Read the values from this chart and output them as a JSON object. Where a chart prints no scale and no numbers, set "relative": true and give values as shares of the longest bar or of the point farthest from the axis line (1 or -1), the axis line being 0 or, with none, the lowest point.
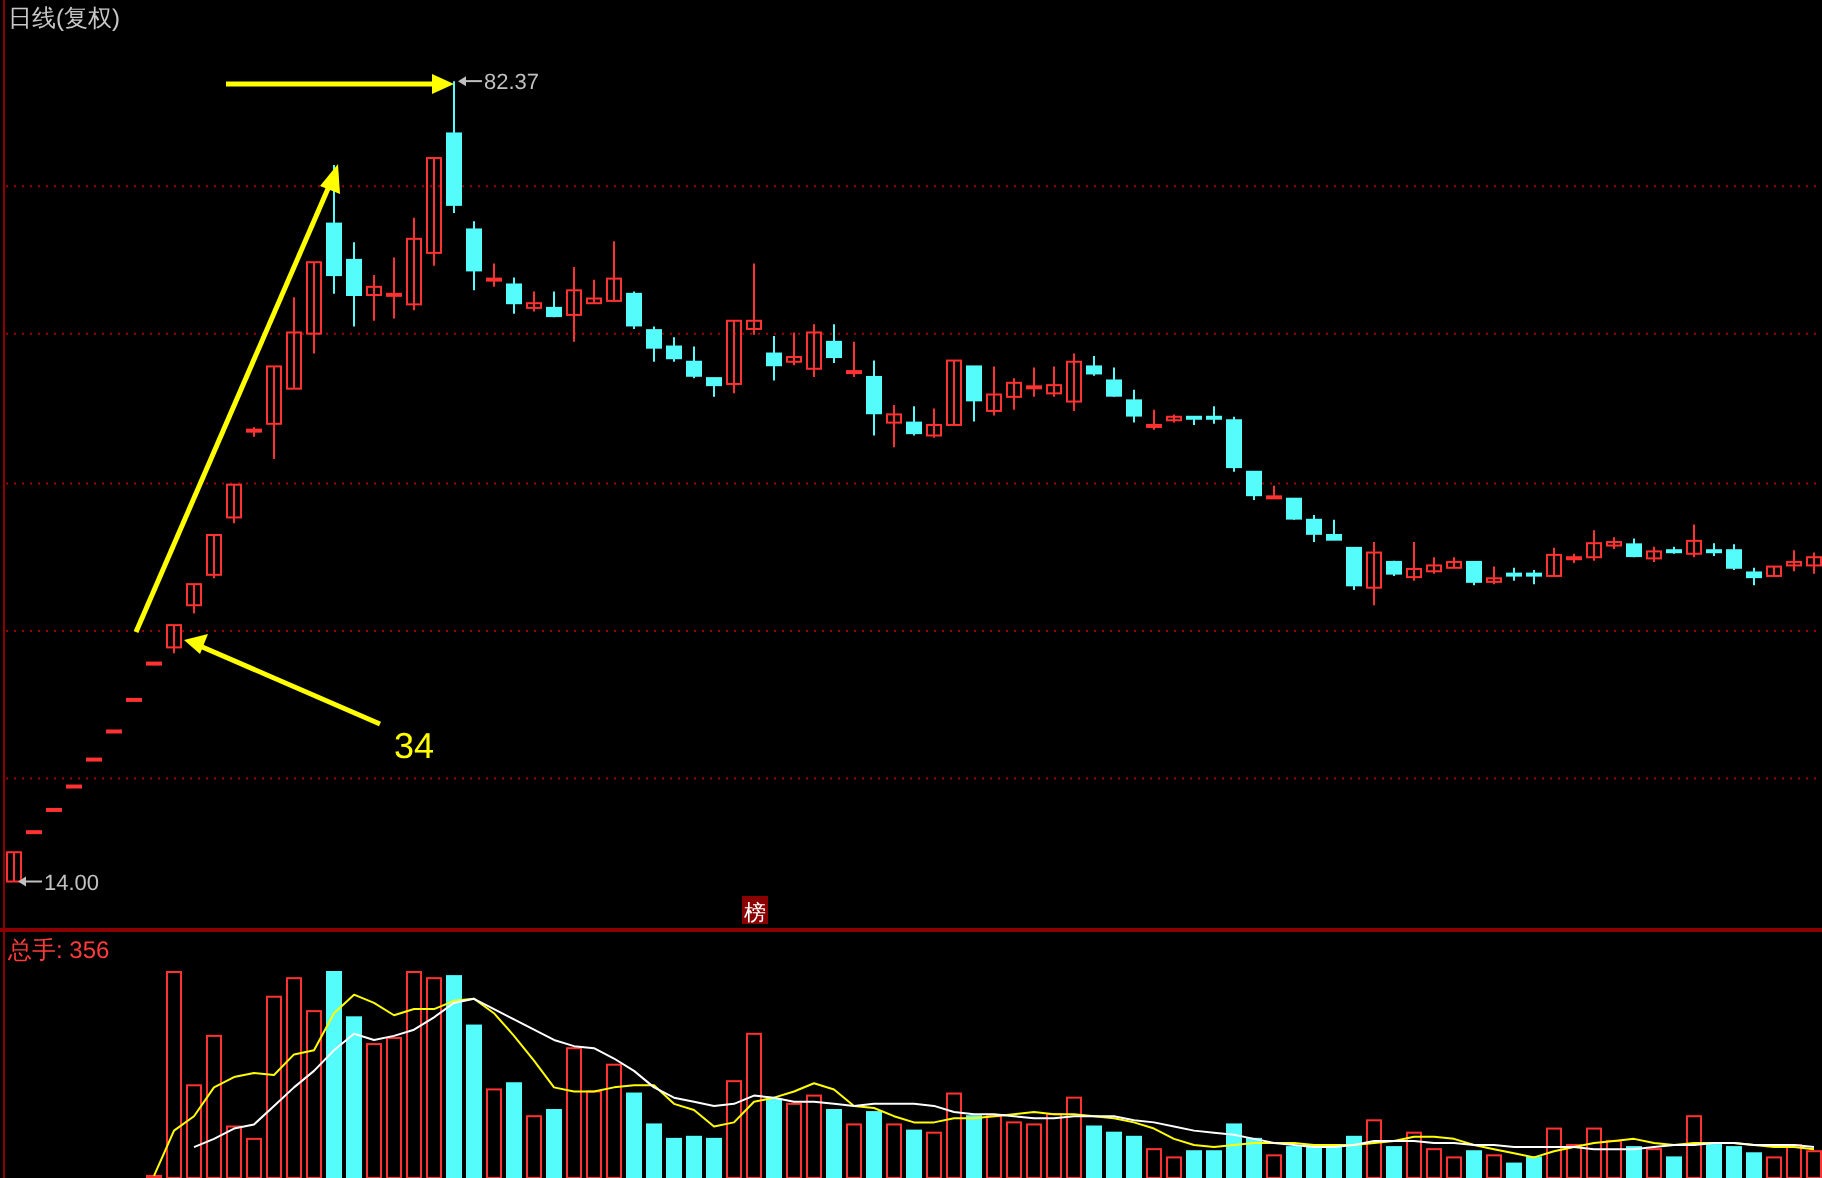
{
  "chart_data": [
    {
      "type": "candlestick",
      "title": "日线(复权)",
      "categories": [
        null,
        null,
        null,
        null,
        null,
        null,
        null,
        null,
        null,
        null,
        null,
        null,
        null,
        null,
        null,
        null,
        null,
        null,
        null,
        null,
        null,
        null,
        null,
        null,
        null,
        null,
        null,
        null,
        null,
        null,
        null,
        null,
        null,
        null,
        null,
        null,
        null,
        null,
        null,
        null,
        null,
        null,
        null,
        null,
        null,
        null,
        null,
        null,
        null,
        null,
        null,
        null,
        null,
        null,
        null,
        null,
        null,
        null,
        null,
        null,
        null,
        null,
        null,
        null,
        null,
        null,
        null,
        null,
        null,
        null,
        null,
        null,
        null,
        null,
        null,
        null,
        null,
        null,
        null,
        null,
        null,
        null,
        null,
        null,
        null,
        null,
        null,
        null,
        null,
        null,
        null
      ],
      "ohlc": [
        [
          14.0,
          16.5,
          14.0,
          16.5
        ],
        [
          18.3,
          18.3,
          18.3,
          18.3
        ],
        [
          20.2,
          20.2,
          20.2,
          20.2
        ],
        [
          22.2,
          22.2,
          22.2,
          22.2
        ],
        [
          24.5,
          24.5,
          24.5,
          24.5
        ],
        [
          26.9,
          26.9,
          26.9,
          26.9
        ],
        [
          29.6,
          29.6,
          29.6,
          29.6
        ],
        [
          32.7,
          32.7,
          32.7,
          32.7
        ],
        [
          34.0,
          35.9,
          33.5,
          35.9
        ],
        [
          37.6,
          39.4,
          36.9,
          39.4
        ],
        [
          40.2,
          43.6,
          39.9,
          43.6
        ],
        [
          45.1,
          47.9,
          44.6,
          47.9
        ],
        [
          52.5,
          52.8,
          52.0,
          52.6
        ],
        [
          53.1,
          58.0,
          50.1,
          58.0
        ],
        [
          56.1,
          63.9,
          56.1,
          60.9
        ],
        [
          60.8,
          66.9,
          59.1,
          66.9
        ],
        [
          70.2,
          75.2,
          64.2,
          65.8
        ],
        [
          67.1,
          68.6,
          61.4,
          64.1
        ],
        [
          64.1,
          65.8,
          61.9,
          64.8
        ],
        [
          64.1,
          67.3,
          62.1,
          64.2
        ],
        [
          63.3,
          70.7,
          62.8,
          68.9
        ],
        [
          67.7,
          75.8,
          66.6,
          75.8
        ],
        [
          77.9,
          82.37,
          71.1,
          71.8
        ],
        [
          69.7,
          70.4,
          64.5,
          66.2
        ],
        [
          65.4,
          66.8,
          64.8,
          65.5
        ],
        [
          65.0,
          65.6,
          62.5,
          63.4
        ],
        [
          63.0,
          64.4,
          62.7,
          63.4
        ],
        [
          63.0,
          64.4,
          62.2,
          62.3
        ],
        [
          62.4,
          66.5,
          60.1,
          64.5
        ],
        [
          63.4,
          65.4,
          63.4,
          63.8
        ],
        [
          63.6,
          68.7,
          63.5,
          65.5
        ],
        [
          64.2,
          64.4,
          61.2,
          61.5
        ],
        [
          61.1,
          61.4,
          58.4,
          59.6
        ],
        [
          59.7,
          60.5,
          58.4,
          58.7
        ],
        [
          58.4,
          59.7,
          57.0,
          57.2
        ],
        [
          57.0,
          57.0,
          55.4,
          56.4
        ],
        [
          56.5,
          61.9,
          55.7,
          61.9
        ],
        [
          61.2,
          66.8,
          60.7,
          61.9
        ],
        [
          59.1,
          60.6,
          56.8,
          58.1
        ],
        [
          58.4,
          60.9,
          58.1,
          58.8
        ],
        [
          57.8,
          61.6,
          57.1,
          60.9
        ],
        [
          60.1,
          61.6,
          58.3,
          58.8
        ],
        [
          57.5,
          60.1,
          57.1,
          57.6
        ],
        [
          57.1,
          58.5,
          52.1,
          54.0
        ],
        [
          53.2,
          54.7,
          51.1,
          53.9
        ],
        [
          53.2,
          54.6,
          52.1,
          52.3
        ],
        [
          52.1,
          54.4,
          51.9,
          53.0
        ],
        [
          53.0,
          58.5,
          53.0,
          58.5
        ],
        [
          58.0,
          58.0,
          53.3,
          55.1
        ],
        [
          54.2,
          58.0,
          53.8,
          55.6
        ],
        [
          55.4,
          57.0,
          54.3,
          56.6
        ],
        [
          56.2,
          57.9,
          55.4,
          56.3
        ],
        [
          55.7,
          58.0,
          55.4,
          56.4
        ],
        [
          55.0,
          59.1,
          54.2,
          58.4
        ],
        [
          58.0,
          58.9,
          57.2,
          57.4
        ],
        [
          56.8,
          57.9,
          55.4,
          55.5
        ],
        [
          55.1,
          56.0,
          53.2,
          53.8
        ],
        [
          52.9,
          54.3,
          52.6,
          53.0
        ],
        [
          53.4,
          53.9,
          53.2,
          53.7
        ],
        [
          53.7,
          53.7,
          53.0,
          53.6
        ],
        [
          53.7,
          54.6,
          53.1,
          53.6
        ],
        [
          53.4,
          53.7,
          49.0,
          49.4
        ],
        [
          49.0,
          49.0,
          46.6,
          47.0
        ],
        [
          46.8,
          47.8,
          46.8,
          46.9
        ],
        [
          46.7,
          46.7,
          44.9,
          45.0
        ],
        [
          44.9,
          45.3,
          43.0,
          43.7
        ],
        [
          43.6,
          44.9,
          43.2,
          43.2
        ],
        [
          42.5,
          42.5,
          38.9,
          39.3
        ],
        [
          39.1,
          43.0,
          37.6,
          42.1
        ],
        [
          41.3,
          41.4,
          40.1,
          40.3
        ],
        [
          40.0,
          43.0,
          39.7,
          40.7
        ],
        [
          40.5,
          41.7,
          40.3,
          41.0
        ],
        [
          40.8,
          41.7,
          40.8,
          41.3
        ],
        [
          41.3,
          41.3,
          39.3,
          39.6
        ],
        [
          39.6,
          40.9,
          39.4,
          39.9
        ],
        [
          40.3,
          40.8,
          39.7,
          40.2
        ],
        [
          40.3,
          40.6,
          39.4,
          40.2
        ],
        [
          40.1,
          42.5,
          40.1,
          41.9
        ],
        [
          41.6,
          42.0,
          41.2,
          41.7
        ],
        [
          41.7,
          44.0,
          41.4,
          42.9
        ],
        [
          42.7,
          43.4,
          42.4,
          43.0
        ],
        [
          42.8,
          43.3,
          41.7,
          41.8
        ],
        [
          41.6,
          42.6,
          41.3,
          42.2
        ],
        [
          42.3,
          42.6,
          42.0,
          42.2
        ],
        [
          42.0,
          44.5,
          41.7,
          43.1
        ],
        [
          42.3,
          42.9,
          41.8,
          42.2
        ],
        [
          42.3,
          42.8,
          40.6,
          40.8
        ],
        [
          40.4,
          40.8,
          39.3,
          40.0
        ],
        [
          40.1,
          40.9,
          40.1,
          40.9
        ],
        [
          41.0,
          42.3,
          40.5,
          41.3
        ],
        [
          41.0,
          42.1,
          40.3,
          41.7
        ]
      ],
      "colors": [
        "#ff3232",
        "#ff3232",
        "#ff3232",
        "#ff3232",
        "#ff3232",
        "#ff3232",
        "#ff3232",
        "#ff3232",
        "#ff3232",
        "#ff3232",
        "#ff3232",
        "#ff3232",
        "#ff3232",
        "#ff3232",
        "#ff3232",
        "#ff3232",
        "#54fcfc",
        "#54fcfc",
        "#ff3232",
        "#ff3232",
        "#ff3232",
        "#ff3232",
        "#54fcfc",
        "#54fcfc",
        "#ff3232",
        "#54fcfc",
        "#ff3232",
        "#54fcfc",
        "#ff3232",
        "#ff3232",
        "#ff3232",
        "#54fcfc",
        "#54fcfc",
        "#54fcfc",
        "#54fcfc",
        "#54fcfc",
        "#ff3232",
        "#ff3232",
        "#54fcfc",
        "#ff3232",
        "#ff3232",
        "#54fcfc",
        "#ff3232",
        "#54fcfc",
        "#ff3232",
        "#54fcfc",
        "#ff3232",
        "#ff3232",
        "#54fcfc",
        "#ff3232",
        "#ff3232",
        "#ff3232",
        "#ff3232",
        "#ff3232",
        "#54fcfc",
        "#54fcfc",
        "#54fcfc",
        "#ff3232",
        "#ff3232",
        "#54fcfc",
        "#54fcfc",
        "#54fcfc",
        "#54fcfc",
        "#ff3232",
        "#54fcfc",
        "#54fcfc",
        "#54fcfc",
        "#54fcfc",
        "#ff3232",
        "#54fcfc",
        "#ff3232",
        "#ff3232",
        "#ff3232",
        "#54fcfc",
        "#ff3232",
        "#54fcfc",
        "#54fcfc",
        "#ff3232",
        "#ff3232",
        "#ff3232",
        "#ff3232",
        "#54fcfc",
        "#ff3232",
        "#54fcfc",
        "#ff3232",
        "#54fcfc",
        "#54fcfc",
        "#54fcfc",
        "#ff3232",
        "#ff3232",
        "#ff3232"
      ],
      "ylim": [
        10.2,
        89.3
      ],
      "yticks": [
        {
          "value": 22.8,
          "label": null
        },
        {
          "value": 35.4,
          "label": null
        },
        {
          "value": 48.0,
          "label": null
        },
        {
          "value": 60.8,
          "label": null
        },
        {
          "value": 73.4,
          "label": null
        }
      ],
      "grid": "y",
      "annotations": [
        "82.37",
        "14.00",
        "34",
        "榜"
      ]
    },
    {
      "type": "bar",
      "relative": true,
      "title": "总手: 356",
      "categories": [
        null,
        null,
        null,
        null,
        null,
        null,
        null,
        null,
        null,
        null,
        null,
        null,
        null,
        null,
        null,
        null,
        null,
        null,
        null,
        null,
        null,
        null,
        null,
        null,
        null,
        null,
        null,
        null,
        null,
        null,
        null,
        null,
        null,
        null,
        null,
        null,
        null,
        null,
        null,
        null,
        null,
        null,
        null,
        null,
        null,
        null,
        null,
        null,
        null,
        null,
        null,
        null,
        null,
        null,
        null,
        null,
        null,
        null,
        null,
        null,
        null,
        null,
        null,
        null,
        null,
        null,
        null,
        null,
        null,
        null,
        null,
        null,
        null,
        null,
        null,
        null,
        null,
        null,
        null,
        null,
        null,
        null,
        null,
        null,
        null,
        null,
        null,
        null,
        null,
        null,
        null
      ],
      "series": [
        {
          "type": "bar",
          "values": [
            0,
            0,
            0,
            0,
            0,
            0,
            0,
            0.01,
            1.0,
            0.45,
            0.69,
            0.25,
            0.19,
            0.88,
            0.97,
            0.81,
            1.0,
            0.78,
            0.65,
            0.68,
            1.0,
            0.97,
            0.98,
            0.74,
            0.43,
            0.46,
            0.3,
            0.33,
            0.63,
            0.42,
            0.55,
            0.41,
            0.26,
            0.19,
            0.2,
            0.19,
            0.47,
            0.7,
            0.38,
            0.36,
            0.4,
            0.33,
            0.26,
            0.32,
            0.26,
            0.23,
            0.22,
            0.41,
            0.3,
            0.3,
            0.27,
            0.26,
            0.31,
            0.39,
            0.25,
            0.22,
            0.2,
            0.14,
            0.1,
            0.13,
            0.13,
            0.26,
            0.19,
            0.11,
            0.15,
            0.16,
            0.16,
            0.2,
            0.28,
            0.15,
            0.22,
            0.14,
            0.1,
            0.13,
            0.11,
            0.07,
            0.1,
            0.24,
            0.16,
            0.24,
            0.18,
            0.15,
            0.14,
            0.1,
            0.3,
            0.16,
            0.15,
            0.12,
            0.1,
            0.16,
            0.13
          ],
          "colors": [
            "#ff3232",
            "#ff3232",
            "#ff3232",
            "#ff3232",
            "#ff3232",
            "#ff3232",
            "#ff3232",
            "#ff3232",
            "#ff3232",
            "#ff3232",
            "#ff3232",
            "#ff3232",
            "#ff3232",
            "#ff3232",
            "#ff3232",
            "#ff3232",
            "#54fcfc",
            "#54fcfc",
            "#ff3232",
            "#ff3232",
            "#ff3232",
            "#ff3232",
            "#54fcfc",
            "#54fcfc",
            "#ff3232",
            "#54fcfc",
            "#ff3232",
            "#54fcfc",
            "#ff3232",
            "#ff3232",
            "#ff3232",
            "#54fcfc",
            "#54fcfc",
            "#54fcfc",
            "#54fcfc",
            "#54fcfc",
            "#ff3232",
            "#ff3232",
            "#54fcfc",
            "#ff3232",
            "#ff3232",
            "#54fcfc",
            "#ff3232",
            "#54fcfc",
            "#ff3232",
            "#54fcfc",
            "#ff3232",
            "#ff3232",
            "#54fcfc",
            "#ff3232",
            "#ff3232",
            "#ff3232",
            "#ff3232",
            "#ff3232",
            "#54fcfc",
            "#54fcfc",
            "#54fcfc",
            "#ff3232",
            "#ff3232",
            "#54fcfc",
            "#54fcfc",
            "#54fcfc",
            "#54fcfc",
            "#ff3232",
            "#54fcfc",
            "#54fcfc",
            "#54fcfc",
            "#54fcfc",
            "#ff3232",
            "#54fcfc",
            "#ff3232",
            "#ff3232",
            "#ff3232",
            "#54fcfc",
            "#ff3232",
            "#54fcfc",
            "#54fcfc",
            "#ff3232",
            "#ff3232",
            "#ff3232",
            "#ff3232",
            "#54fcfc",
            "#ff3232",
            "#54fcfc",
            "#ff3232",
            "#54fcfc",
            "#54fcfc",
            "#54fcfc",
            "#ff3232",
            "#ff3232",
            "#ff3232"
          ]
        },
        {
          "type": "line",
          "color": "#ffff00",
          "values": [
            null,
            null,
            null,
            null,
            null,
            null,
            null,
            0.01,
            0.23,
            0.3,
            0.44,
            0.49,
            0.51,
            0.5,
            0.6,
            0.62,
            0.8,
            0.89,
            0.85,
            0.79,
            0.82,
            0.82,
            0.86,
            0.87,
            0.8,
            0.69,
            0.57,
            0.44,
            0.42,
            0.42,
            0.44,
            0.45,
            0.45,
            0.36,
            0.33,
            0.25,
            0.27,
            0.37,
            0.39,
            0.42,
            0.46,
            0.43,
            0.35,
            0.34,
            0.3,
            0.27,
            0.27,
            0.29,
            0.29,
            0.3,
            0.31,
            0.32,
            0.31,
            0.31,
            0.3,
            0.29,
            0.27,
            0.24,
            0.19,
            0.16,
            0.15,
            0.16,
            0.17,
            0.17,
            0.17,
            0.16,
            0.16,
            0.16,
            0.17,
            0.18,
            0.2,
            0.2,
            0.19,
            0.16,
            0.14,
            0.12,
            0.1,
            0.13,
            0.15,
            0.17,
            0.18,
            0.19,
            0.17,
            0.16,
            0.17,
            0.17,
            0.17,
            0.16,
            0.15,
            0.15,
            0.14
          ]
        },
        {
          "type": "line",
          "color": "#ffffff",
          "values": [
            null,
            null,
            null,
            null,
            null,
            null,
            null,
            null,
            null,
            0.15,
            0.19,
            0.24,
            0.26,
            0.35,
            0.44,
            0.52,
            0.62,
            0.7,
            0.67,
            0.69,
            0.72,
            0.78,
            0.85,
            0.87,
            0.82,
            0.77,
            0.72,
            0.67,
            0.64,
            0.63,
            0.58,
            0.52,
            0.44,
            0.39,
            0.37,
            0.35,
            0.36,
            0.4,
            0.39,
            0.37,
            0.37,
            0.36,
            0.35,
            0.36,
            0.36,
            0.36,
            0.35,
            0.32,
            0.31,
            0.31,
            0.3,
            0.29,
            0.29,
            0.3,
            0.3,
            0.3,
            0.28,
            0.27,
            0.25,
            0.23,
            0.22,
            0.21,
            0.19,
            0.17,
            0.16,
            0.15,
            0.15,
            0.16,
            0.18,
            0.18,
            0.18,
            0.17,
            0.17,
            0.16,
            0.16,
            0.15,
            0.15,
            0.15,
            0.15,
            0.14,
            0.14,
            0.14,
            0.15,
            0.16,
            0.16,
            0.17,
            0.17,
            0.16,
            0.16,
            0.16,
            0.15
          ]
        }
      ]
    }
  ]
}
